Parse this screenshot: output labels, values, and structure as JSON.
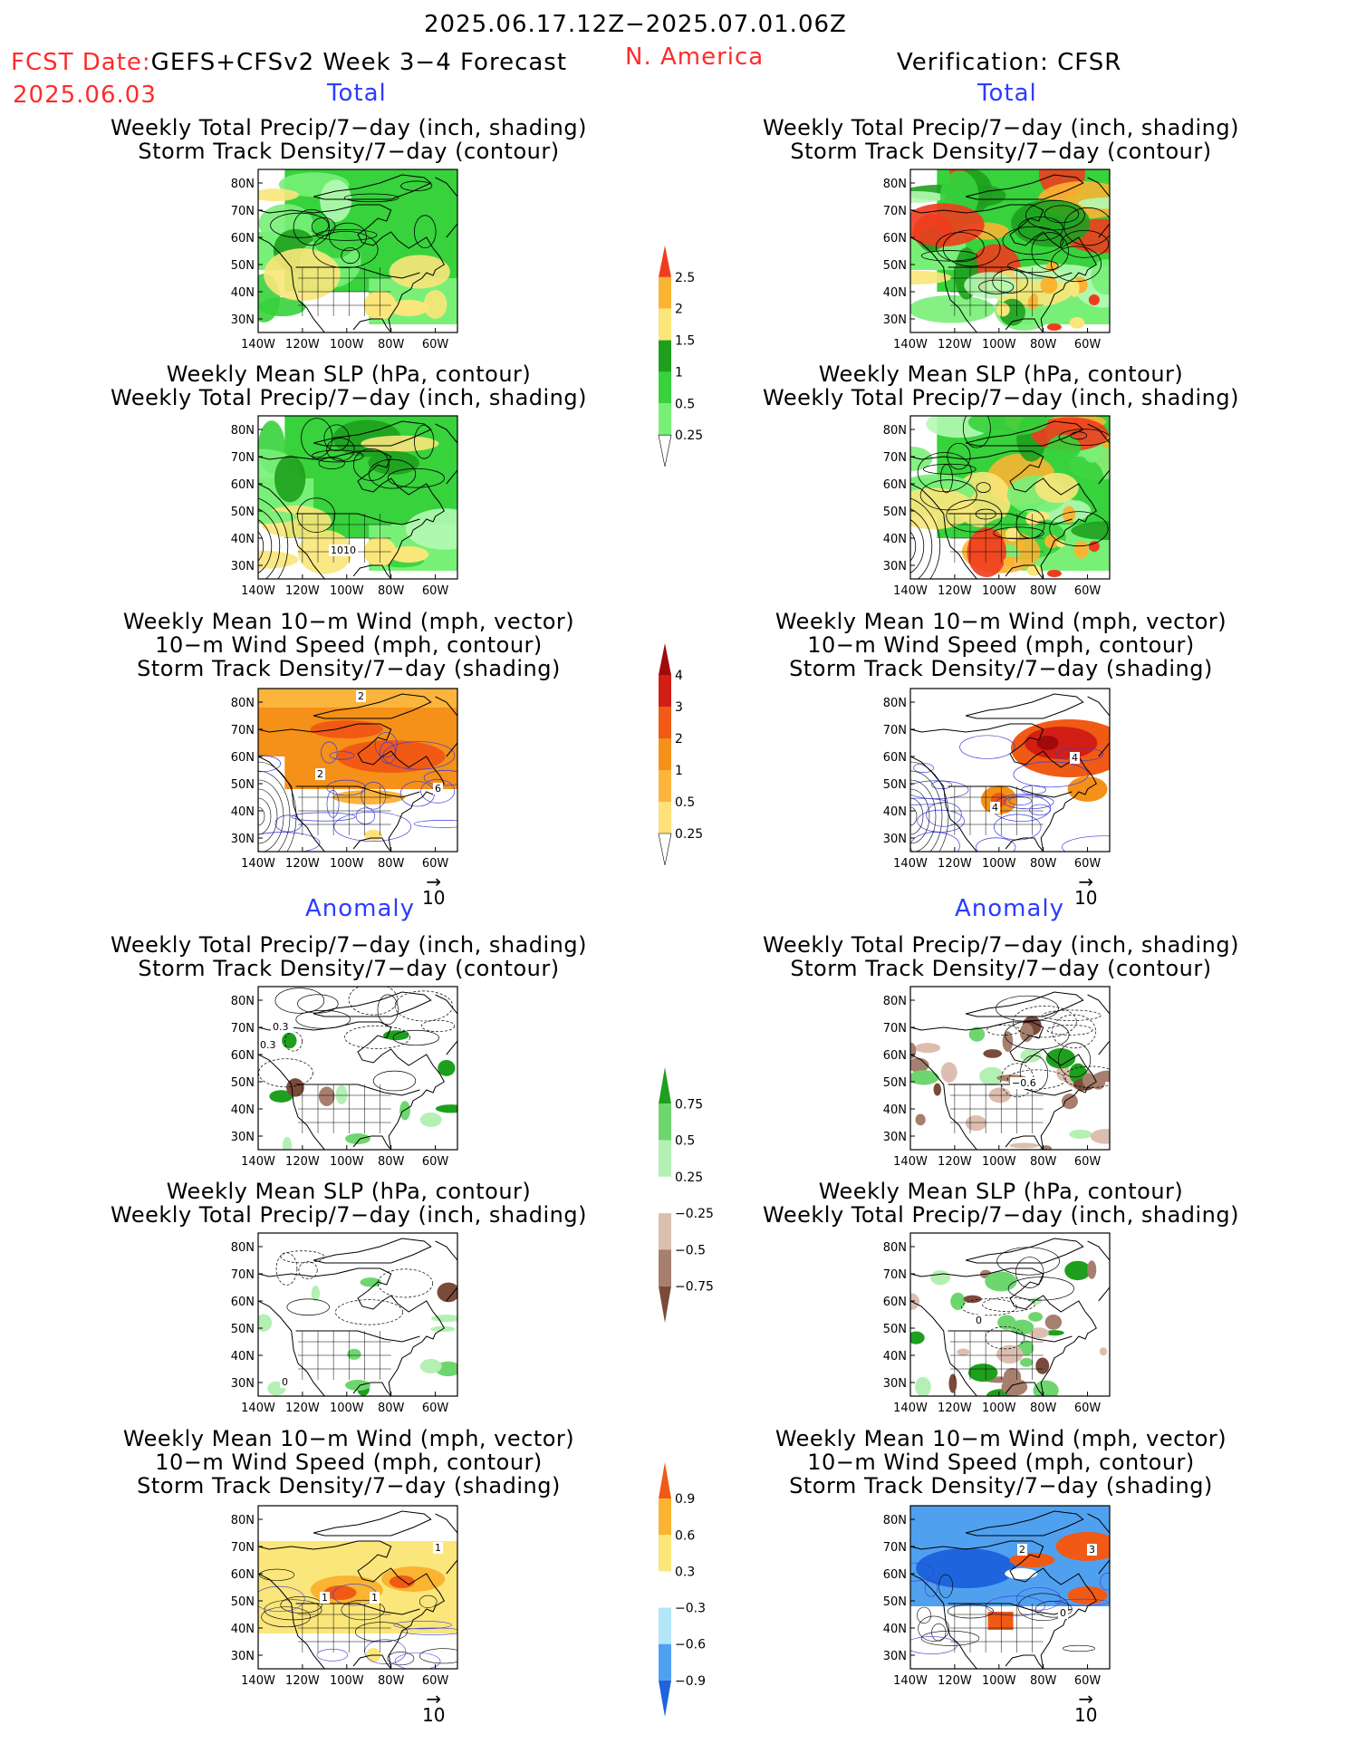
{
  "header": {
    "date_range": "2025.06.17.12Z−2025.07.01.06Z",
    "fcst_label": "FCST Date:",
    "fcst_model": "GEFS+CFSv2 Week 3−4 Forecast",
    "fcst_date": "2025.06.03",
    "region": "N. America",
    "verification": "Verification: CFSR"
  },
  "sections": {
    "total_label": "Total",
    "anomaly_label": "Anomaly"
  },
  "titles": {
    "precip_storm": [
      "Weekly Total Precip/7−day (inch, shading)",
      "Storm Track Density/7−day (contour)"
    ],
    "slp_precip": [
      "Weekly Mean SLP (hPa, contour)",
      "Weekly Total Precip/7−day (inch, shading)"
    ],
    "wind_storm": [
      "Weekly Mean 10−m Wind (mph, vector)",
      "10−m Wind Speed (mph, contour)",
      "Storm Track Density/7−day (shading)"
    ]
  },
  "map_axes": {
    "lat_ticks": [
      "80N",
      "70N",
      "60N",
      "50N",
      "40N",
      "30N"
    ],
    "lon_ticks": [
      "140W",
      "120W",
      "100W",
      "80W",
      "60W"
    ]
  },
  "vector_ref": "10",
  "contour_labels": {
    "slp_forecast": "1010",
    "wind_total_fc": [
      "2",
      "2",
      "6"
    ],
    "wind_total_obs": [
      "4",
      "4"
    ],
    "anom_precip_fc": [
      "0.3",
      "0.3"
    ],
    "anom_precip_obs": "−0.6",
    "anom_slp_fc": "0",
    "anom_slp_obs": "0",
    "anom_wind_fc": [
      "1",
      "1",
      "1"
    ],
    "anom_wind_obs": [
      "2",
      "3",
      "0"
    ]
  },
  "colors": {
    "precip_total": [
      "#b4fab4",
      "#78f078",
      "#37d23c",
      "#1ea01e",
      "#fae67a",
      "#fab432",
      "#f03c1e"
    ],
    "storm_total": [
      "#fff6c0",
      "#ffe07a",
      "#fbb43c",
      "#f59018",
      "#f05a14",
      "#d21e14",
      "#a00a0a"
    ],
    "precip_anom": [
      "#7a4a3a",
      "#a67f6e",
      "#dcbeb0",
      "#ffffff",
      "#b4f0b4",
      "#6ed66e",
      "#1ea01e"
    ],
    "wind_anom": [
      "#1e64dc",
      "#50a0f0",
      "#b4e6fa",
      "#ffffff",
      "#fae67a",
      "#fab432",
      "#f05a14"
    ]
  },
  "chart_data": [
    {
      "type": "colorbar",
      "name": "precip_total",
      "levels": [
        0.25,
        0.5,
        1,
        1.5,
        2,
        2.5
      ],
      "tick_labels": [
        "0.25",
        "0.5",
        "1",
        "1.5",
        "2",
        "2.5"
      ]
    },
    {
      "type": "colorbar",
      "name": "storm_total",
      "levels": [
        0.25,
        0.5,
        1,
        2,
        3,
        4
      ],
      "tick_labels": [
        "0.25",
        "0.5",
        "1",
        "2",
        "3",
        "4"
      ]
    },
    {
      "type": "colorbar",
      "name": "precip_anom",
      "levels": [
        -0.75,
        -0.5,
        -0.25,
        0.25,
        0.5,
        0.75
      ],
      "tick_labels": [
        "−0.75",
        "−0.5",
        "−0.25",
        "0.25",
        "0.5",
        "0.75"
      ]
    },
    {
      "type": "colorbar",
      "name": "wind_anom",
      "levels": [
        -0.9,
        -0.6,
        -0.3,
        0.3,
        0.6,
        0.9
      ],
      "tick_labels": [
        "−0.9",
        "−0.6",
        "−0.3",
        "0.3",
        "0.6",
        "0.9"
      ]
    },
    {
      "type": "heatmap",
      "panels": 12,
      "lat_range": [
        25,
        85
      ],
      "lon_range": [
        -140,
        -50
      ]
    }
  ]
}
